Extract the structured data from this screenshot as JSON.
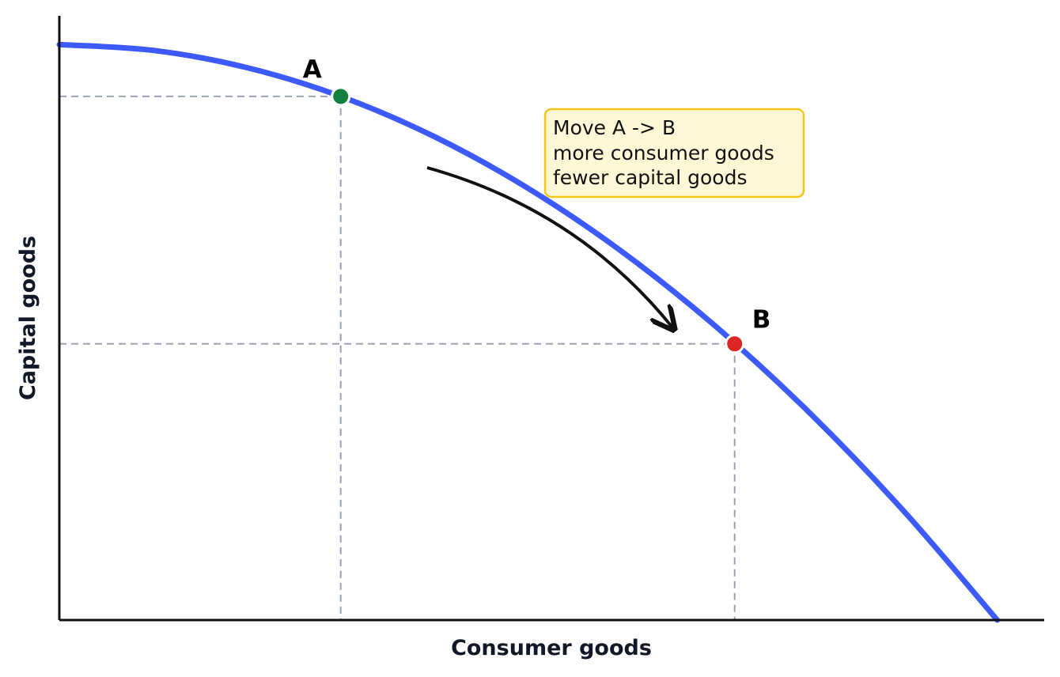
{
  "chart_data": {
    "type": "line",
    "xlabel": "Consumer goods",
    "ylabel": "Capital goods",
    "xlim": [
      0,
      10.5
    ],
    "ylim": [
      0,
      10.5
    ],
    "grid": false,
    "curve": {
      "x": [
        0,
        1,
        2,
        3,
        4,
        5,
        6,
        7,
        8,
        9,
        10
      ],
      "y": [
        10,
        9.9,
        9.6,
        9.1,
        8.4,
        7.5,
        6.4,
        5.1,
        3.6,
        1.9,
        0
      ],
      "color": "#3d5afe"
    },
    "points": [
      {
        "label": "A",
        "x": 3,
        "y": 9.1,
        "color": "#15803d"
      },
      {
        "label": "B",
        "x": 7.2,
        "y": 4.8,
        "color": "#dc2626"
      }
    ],
    "annotation": {
      "lines": [
        "Move A -> B",
        "more consumer goods",
        "fewer capital goods"
      ],
      "box_color": "#fff8d6",
      "border_color": "#f5c518"
    },
    "guide_color": "#9aa0b4"
  }
}
